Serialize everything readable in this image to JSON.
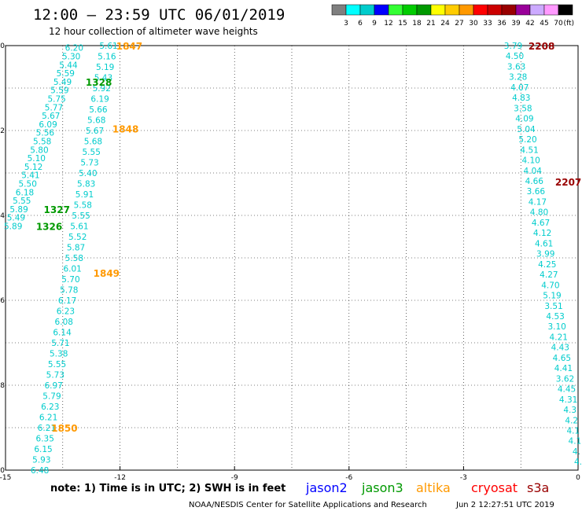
{
  "header": {
    "title": "12:00 – 23:59 UTC 06/01/2019",
    "subtitle": "12 hour collection of altimeter wave heights"
  },
  "color_scale": {
    "labels": [
      "3",
      "6",
      "9",
      "12",
      "15",
      "18",
      "21",
      "24",
      "27",
      "30",
      "33",
      "36",
      "39",
      "42",
      "45",
      "70"
    ],
    "unit": "(ft)",
    "colors": [
      "#7f7f7f",
      "#00ffff",
      "#00cccc",
      "#0000ff",
      "#33ff33",
      "#00cc00",
      "#009900",
      "#ffff00",
      "#ffcc00",
      "#ff9900",
      "#ff0000",
      "#cc0000",
      "#990000",
      "#990099",
      "#ccaaff",
      "#ff99ff",
      "#000000"
    ]
  },
  "chart_data": {
    "type": "scatter",
    "xlim": [
      -15,
      0
    ],
    "ylim": [
      -10,
      0
    ],
    "xticks": [
      "-15",
      "-12",
      "-9",
      "-6",
      "-3",
      "0"
    ],
    "yticks": [
      "0",
      "-2",
      "-4",
      "-6",
      "-8",
      "-10"
    ],
    "grid": "dotted",
    "tracks": [
      {
        "name": "left-track-a",
        "color": "#00cccc",
        "lon_start": -13.2,
        "lat_start": -0.05,
        "lon_end": -14.8,
        "lat_end": -4.25,
        "values": [
          "6.20",
          "5.30",
          "5.44",
          "5.59",
          "5.49",
          "5.59",
          "5.75",
          "5.77",
          "5.67",
          "6.09",
          "5.56",
          "5.58",
          "5.80",
          "5.10",
          "5.12",
          "5.41",
          "5.50",
          "6.18",
          "5.55",
          "5.89",
          "5.49",
          "5.89"
        ]
      },
      {
        "name": "left-track-b",
        "color": "#00cccc",
        "lon_start": -12.3,
        "lat_start": 0.0,
        "lon_end": -14.1,
        "lat_end": -10.0,
        "values": [
          "5.61",
          "5.16",
          "5.19",
          "5.43",
          "5.92",
          "6.19",
          "5.66",
          "5.68",
          "5.67",
          "5.68",
          "5.55",
          "5.73",
          "5.40",
          "5.83",
          "5.91",
          "5.58",
          "5.55",
          "5.61",
          "5.52",
          "5.87",
          "5.58",
          "6.01",
          "5.70",
          "5.78",
          "6.17",
          "6.23",
          "6.08",
          "6.14",
          "5.71",
          "5.38",
          "5.55",
          "5.73",
          "6.97",
          "5.79",
          "6.23",
          "6.21",
          "6.21",
          "6.35",
          "6.15",
          "5.93",
          "6.48"
        ]
      },
      {
        "name": "right-track",
        "color": "#00cccc",
        "lon_start": -1.7,
        "lat_start": 0.0,
        "lon_end": 0.0,
        "lat_end": -9.8,
        "values": [
          "3.79",
          "4.50",
          "3.63",
          "3.28",
          "4.07",
          "4.83",
          "3.58",
          "4.09",
          "5.04",
          "5.20",
          "4.51",
          "4.10",
          "4.04",
          "4.66",
          "3.66",
          "4.17",
          "4.80",
          "4.67",
          "4.12",
          "4.61",
          "3.99",
          "4.25",
          "4.27",
          "4.70",
          "5.19",
          "3.51",
          "4.53",
          "3.10",
          "4.21",
          "4.43",
          "4.65",
          "4.41",
          "3.62",
          "4.45",
          "4.31",
          "4.3",
          "4.2",
          "4.1",
          "4.1",
          "4.",
          "4."
        ]
      }
    ],
    "pass_labels": [
      {
        "text": "1847",
        "lon": -12.1,
        "lat": 0.0,
        "color": "#ff9900"
      },
      {
        "text": "1328",
        "lon": -12.9,
        "lat": -0.85,
        "color": "#009900"
      },
      {
        "text": "1848",
        "lon": -12.2,
        "lat": -1.95,
        "color": "#ff9900"
      },
      {
        "text": "1327",
        "lon": -14.0,
        "lat": -3.85,
        "color": "#009900"
      },
      {
        "text": "1326",
        "lon": -14.2,
        "lat": -4.25,
        "color": "#009900"
      },
      {
        "text": "1849",
        "lon": -12.7,
        "lat": -5.35,
        "color": "#ff9900"
      },
      {
        "text": "1850",
        "lon": -13.8,
        "lat": -9.0,
        "color": "#ff9900"
      },
      {
        "text": "2208",
        "lon": -1.3,
        "lat": 0.0,
        "color": "#990000"
      },
      {
        "text": "2207",
        "lon": -0.6,
        "lat": -3.2,
        "color": "#990000"
      }
    ]
  },
  "note": "note:  1) Time is in UTC; 2) SWH is in feet",
  "legend": [
    {
      "label": "jason2",
      "color": "#0000ff"
    },
    {
      "label": "jason3",
      "color": "#009900"
    },
    {
      "label": "altika",
      "color": "#ff9900"
    },
    {
      "label": "cryosat",
      "color": "#ff0000"
    },
    {
      "label": "s3a",
      "color": "#990000"
    }
  ],
  "footer": {
    "credit": "NOAA/NESDIS Center for Satellite Applications and Research",
    "timestamp": "Jun  2 12:27:51 UTC 2019"
  }
}
